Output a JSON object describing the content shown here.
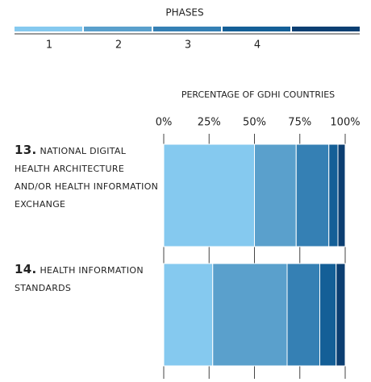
{
  "chart_data": {
    "type": "stacked-bar-horizontal",
    "legend_title": "PHASES",
    "xlabel": "PERCENTAGE OF GDHI COUNTRIES",
    "category_numbers": [
      "13.",
      "14."
    ],
    "categories": [
      "NATIONAL DIGITAL HEALTH ARCHITECTURE AND/OR HEALTH INFORMATION EXCHANGE",
      "HEALTH INFORMATION STANDARDS"
    ],
    "series": [
      {
        "name": "1",
        "color": "#85c9ef",
        "values": [
          50,
          27
        ]
      },
      {
        "name": "2",
        "color": "#5aa0cc",
        "values": [
          23,
          41
        ]
      },
      {
        "name": "3",
        "color": "#3580b4",
        "values": [
          18,
          18
        ]
      },
      {
        "name": "4",
        "color": "#145f97",
        "values": [
          5,
          9
        ]
      },
      {
        "name": null,
        "color": "#0c3f72",
        "values": [
          4,
          5
        ]
      }
    ],
    "xlim": [
      0,
      100
    ],
    "xticks": [
      {
        "value": 0,
        "label": "0%"
      },
      {
        "value": 25,
        "label": "25%"
      },
      {
        "value": 50,
        "label": "50%"
      },
      {
        "value": 75,
        "label": "75%"
      },
      {
        "value": 100,
        "label": "100%"
      }
    ]
  }
}
